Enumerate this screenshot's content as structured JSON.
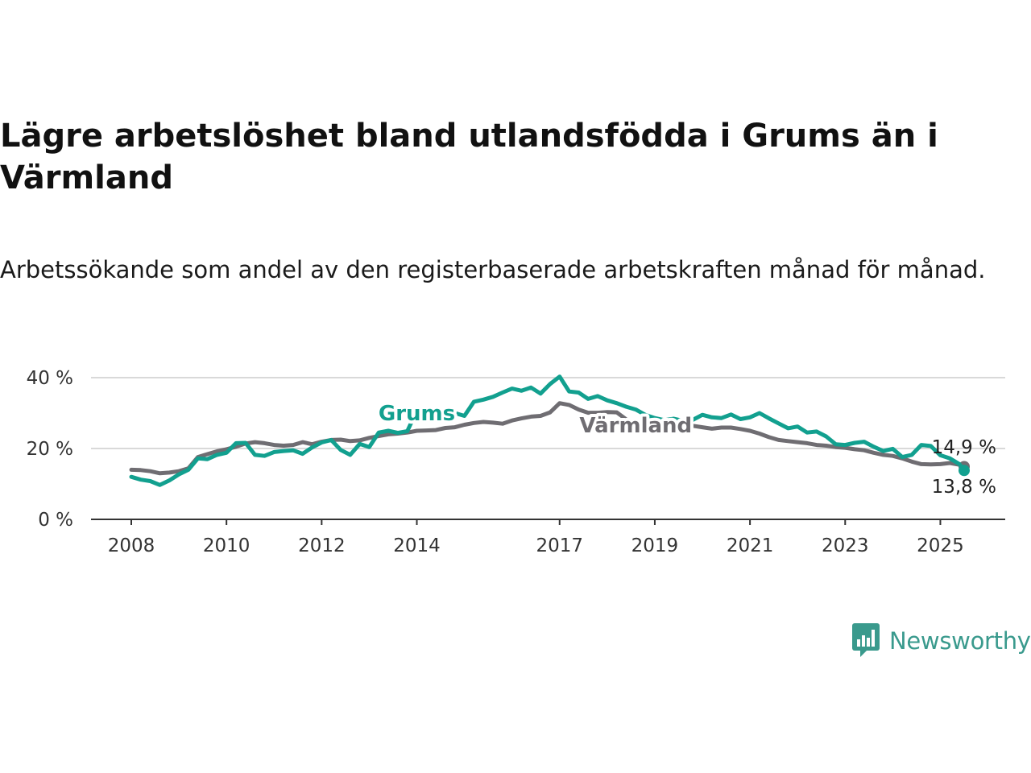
{
  "title": "Lägre arbetslöshet bland utlandsfödda i Grums än i Värmland",
  "subtitle": "Arbetssökande som andel av den registerbaserade arbetskraften månad för månad.",
  "brand": {
    "name": "Newsworthy",
    "color": "#3a9a8d",
    "icon": "bar-chart-speech-bubble-icon"
  },
  "colors": {
    "grums": "#12a08f",
    "varmland": "#6f6d72",
    "grid": "#d9d9d9",
    "axis": "#333333"
  },
  "chart_data": {
    "type": "line",
    "xlim": [
      2008,
      2025.75
    ],
    "ylim": [
      0,
      40
    ],
    "x_ticks": [
      {
        "x": 2008,
        "label": "2008"
      },
      {
        "x": 2010,
        "label": "2010"
      },
      {
        "x": 2012,
        "label": "2012"
      },
      {
        "x": 2014,
        "label": "2014"
      },
      {
        "x": 2017,
        "label": "2017"
      },
      {
        "x": 2019,
        "label": "2019"
      },
      {
        "x": 2021,
        "label": "2021"
      },
      {
        "x": 2023,
        "label": "2023"
      },
      {
        "x": 2025,
        "label": "2025"
      }
    ],
    "y_ticks": [
      {
        "y": 0,
        "label": "0 %"
      },
      {
        "y": 20,
        "label": "20 %"
      },
      {
        "y": 40,
        "label": "40 %"
      }
    ],
    "grid": true,
    "series": [
      {
        "name": "Grums",
        "key": "grums",
        "end_label": "13,8 %",
        "points": [
          [
            2008.0,
            12.0
          ],
          [
            2008.2,
            11.2
          ],
          [
            2008.4,
            10.8
          ],
          [
            2008.6,
            9.7
          ],
          [
            2008.8,
            11.0
          ],
          [
            2009.0,
            12.7
          ],
          [
            2009.2,
            14.0
          ],
          [
            2009.4,
            17.2
          ],
          [
            2009.6,
            17.0
          ],
          [
            2009.8,
            18.2
          ],
          [
            2010.0,
            18.8
          ],
          [
            2010.2,
            21.5
          ],
          [
            2010.4,
            21.6
          ],
          [
            2010.6,
            18.2
          ],
          [
            2010.8,
            17.9
          ],
          [
            2011.0,
            19.0
          ],
          [
            2011.2,
            19.3
          ],
          [
            2011.4,
            19.5
          ],
          [
            2011.6,
            18.5
          ],
          [
            2011.8,
            20.3
          ],
          [
            2012.0,
            21.7
          ],
          [
            2012.2,
            22.4
          ],
          [
            2012.4,
            19.6
          ],
          [
            2012.6,
            18.2
          ],
          [
            2012.8,
            21.3
          ],
          [
            2013.0,
            20.4
          ],
          [
            2013.2,
            24.5
          ],
          [
            2013.4,
            25.0
          ],
          [
            2013.6,
            24.4
          ],
          [
            2013.8,
            24.9
          ],
          [
            2014.0,
            30.7
          ],
          [
            2014.2,
            31.0
          ],
          [
            2014.4,
            28.2
          ],
          [
            2014.6,
            28.8
          ],
          [
            2014.8,
            30.0
          ],
          [
            2015.0,
            29.2
          ],
          [
            2015.2,
            33.2
          ],
          [
            2015.4,
            33.8
          ],
          [
            2015.6,
            34.6
          ],
          [
            2015.8,
            35.8
          ],
          [
            2016.0,
            36.9
          ],
          [
            2016.2,
            36.3
          ],
          [
            2016.4,
            37.2
          ],
          [
            2016.6,
            35.5
          ],
          [
            2016.8,
            38.2
          ],
          [
            2017.0,
            40.3
          ],
          [
            2017.2,
            36.1
          ],
          [
            2017.4,
            35.8
          ],
          [
            2017.6,
            34.0
          ],
          [
            2017.8,
            34.8
          ],
          [
            2018.0,
            33.6
          ],
          [
            2018.2,
            32.8
          ],
          [
            2018.4,
            31.8
          ],
          [
            2018.6,
            31.0
          ],
          [
            2018.8,
            29.5
          ],
          [
            2019.0,
            28.6
          ],
          [
            2019.2,
            28.0
          ],
          [
            2019.4,
            28.4
          ],
          [
            2019.6,
            27.8
          ],
          [
            2019.8,
            28.1
          ],
          [
            2020.0,
            29.5
          ],
          [
            2020.2,
            28.8
          ],
          [
            2020.4,
            28.6
          ],
          [
            2020.6,
            29.6
          ],
          [
            2020.8,
            28.3
          ],
          [
            2021.0,
            28.8
          ],
          [
            2021.2,
            30.0
          ],
          [
            2021.4,
            28.5
          ],
          [
            2021.6,
            27.1
          ],
          [
            2021.8,
            25.7
          ],
          [
            2022.0,
            26.2
          ],
          [
            2022.2,
            24.5
          ],
          [
            2022.4,
            24.8
          ],
          [
            2022.6,
            23.4
          ],
          [
            2022.8,
            21.2
          ],
          [
            2023.0,
            21.0
          ],
          [
            2023.2,
            21.6
          ],
          [
            2023.4,
            21.9
          ],
          [
            2023.6,
            20.5
          ],
          [
            2023.8,
            19.3
          ],
          [
            2024.0,
            19.9
          ],
          [
            2024.2,
            17.6
          ],
          [
            2024.4,
            18.2
          ],
          [
            2024.6,
            21.0
          ],
          [
            2024.8,
            20.7
          ],
          [
            2025.0,
            18.1
          ],
          [
            2025.2,
            17.2
          ],
          [
            2025.4,
            15.6
          ],
          [
            2025.5,
            13.8
          ]
        ]
      },
      {
        "name": "Värmland",
        "key": "varmland",
        "end_label": "14,9 %",
        "points": [
          [
            2008.0,
            14.0
          ],
          [
            2008.2,
            13.9
          ],
          [
            2008.4,
            13.6
          ],
          [
            2008.6,
            13.0
          ],
          [
            2008.8,
            13.2
          ],
          [
            2009.0,
            13.6
          ],
          [
            2009.2,
            14.4
          ],
          [
            2009.4,
            17.6
          ],
          [
            2009.6,
            18.4
          ],
          [
            2009.8,
            19.2
          ],
          [
            2010.0,
            19.8
          ],
          [
            2010.2,
            20.5
          ],
          [
            2010.4,
            21.4
          ],
          [
            2010.6,
            21.8
          ],
          [
            2010.8,
            21.5
          ],
          [
            2011.0,
            21.0
          ],
          [
            2011.2,
            20.8
          ],
          [
            2011.4,
            21.0
          ],
          [
            2011.6,
            21.8
          ],
          [
            2011.8,
            21.2
          ],
          [
            2012.0,
            21.9
          ],
          [
            2012.2,
            22.4
          ],
          [
            2012.4,
            22.5
          ],
          [
            2012.6,
            22.1
          ],
          [
            2012.8,
            22.3
          ],
          [
            2013.0,
            23.0
          ],
          [
            2013.2,
            23.5
          ],
          [
            2013.4,
            24.0
          ],
          [
            2013.6,
            24.2
          ],
          [
            2013.8,
            24.5
          ],
          [
            2014.0,
            25.0
          ],
          [
            2014.2,
            25.1
          ],
          [
            2014.4,
            25.2
          ],
          [
            2014.6,
            25.8
          ],
          [
            2014.8,
            26.0
          ],
          [
            2015.0,
            26.7
          ],
          [
            2015.2,
            27.2
          ],
          [
            2015.4,
            27.5
          ],
          [
            2015.6,
            27.3
          ],
          [
            2015.8,
            27.0
          ],
          [
            2016.0,
            27.9
          ],
          [
            2016.2,
            28.5
          ],
          [
            2016.4,
            29.0
          ],
          [
            2016.6,
            29.2
          ],
          [
            2016.8,
            30.2
          ],
          [
            2017.0,
            32.8
          ],
          [
            2017.2,
            32.3
          ],
          [
            2017.4,
            31.0
          ],
          [
            2017.6,
            30.1
          ],
          [
            2017.8,
            30.1
          ],
          [
            2018.0,
            30.3
          ],
          [
            2018.2,
            30.2
          ],
          [
            2018.4,
            28.2
          ],
          [
            2018.6,
            26.8
          ],
          [
            2018.8,
            26.5
          ],
          [
            2019.0,
            26.3
          ],
          [
            2019.2,
            26.4
          ],
          [
            2019.4,
            26.5
          ],
          [
            2019.6,
            26.2
          ],
          [
            2019.8,
            26.4
          ],
          [
            2020.0,
            26.0
          ],
          [
            2020.2,
            25.6
          ],
          [
            2020.4,
            25.9
          ],
          [
            2020.6,
            25.9
          ],
          [
            2020.8,
            25.5
          ],
          [
            2021.0,
            25.0
          ],
          [
            2021.2,
            24.2
          ],
          [
            2021.4,
            23.2
          ],
          [
            2021.6,
            22.4
          ],
          [
            2021.8,
            22.1
          ],
          [
            2022.0,
            21.8
          ],
          [
            2022.2,
            21.5
          ],
          [
            2022.4,
            21.0
          ],
          [
            2022.6,
            20.8
          ],
          [
            2022.8,
            20.4
          ],
          [
            2023.0,
            20.2
          ],
          [
            2023.2,
            19.8
          ],
          [
            2023.4,
            19.5
          ],
          [
            2023.6,
            18.8
          ],
          [
            2023.8,
            18.2
          ],
          [
            2024.0,
            17.9
          ],
          [
            2024.2,
            17.2
          ],
          [
            2024.4,
            16.3
          ],
          [
            2024.6,
            15.6
          ],
          [
            2024.8,
            15.5
          ],
          [
            2025.0,
            15.6
          ],
          [
            2025.2,
            15.9
          ],
          [
            2025.4,
            15.4
          ],
          [
            2025.5,
            14.9
          ]
        ]
      }
    ],
    "inline_labels": [
      {
        "series": "Grums",
        "text": "Grums",
        "x": 2014.0,
        "y": 28.0
      },
      {
        "series": "Värmland",
        "text": "Värmland",
        "x": 2018.6,
        "y": 24.5
      }
    ]
  }
}
